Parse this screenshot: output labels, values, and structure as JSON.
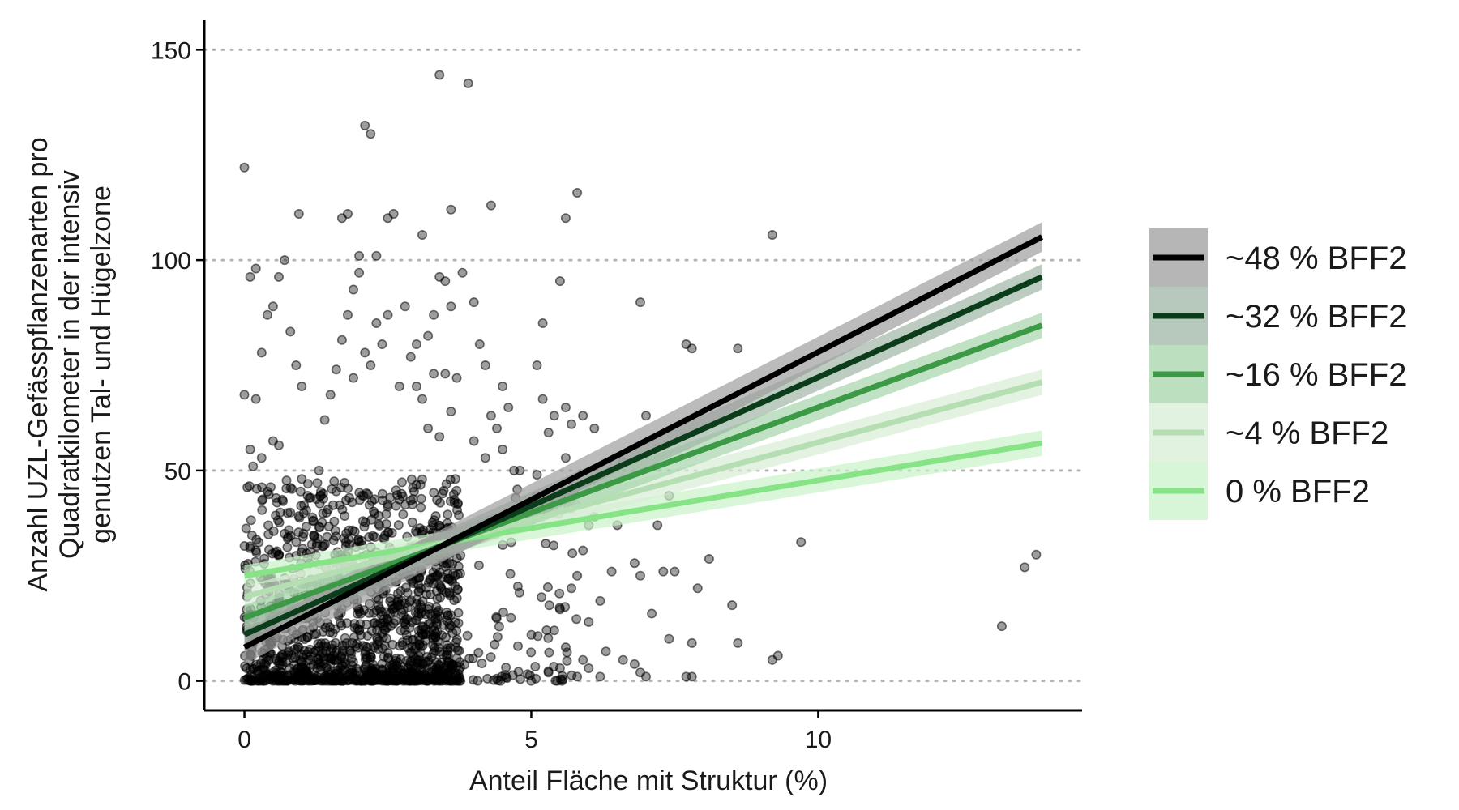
{
  "chart_data": {
    "type": "scatter",
    "xlabel": "Anteil Fläche mit Struktur (%)",
    "ylabel": [
      "Anzahl UZL-Gefässpflanzenarten pro",
      "Quadratkilometer in der intensiv",
      "genutzen Tal- und Hügelzone"
    ],
    "xlim": [
      -0.7,
      14.6
    ],
    "ylim": [
      -7,
      157
    ],
    "x_ticks": [
      0,
      5,
      10
    ],
    "x_tick_labels": [
      "0",
      "5",
      "10"
    ],
    "y_ticks": [
      0,
      50,
      100,
      150
    ],
    "y_tick_labels": [
      "0",
      "50",
      "100",
      "150"
    ],
    "grid": "horizontal dotted",
    "legend_position": "right",
    "point_color": "#000000",
    "series": [
      {
        "name": "~48 % BFF2",
        "color": "#000000",
        "band_color": "#9e9e9e",
        "x": [
          0,
          13.9
        ],
        "y": [
          8,
          105.5
        ],
        "ci": [
          4,
          3.5
        ]
      },
      {
        "name": "~32 % BFF2",
        "color": "#0b3d1a",
        "band_color": "#9fb7a5",
        "x": [
          0,
          13.9
        ],
        "y": [
          11,
          96
        ],
        "ci": [
          3.5,
          3
        ]
      },
      {
        "name": "~16 % BFF2",
        "color": "#3c9a46",
        "band_color": "#a5d4a9",
        "x": [
          0,
          13.9
        ],
        "y": [
          15,
          84.5
        ],
        "ci": [
          3,
          3
        ]
      },
      {
        "name": "~4 % BFF2",
        "color": "#b5deb2",
        "band_color": "#d8edd6",
        "x": [
          0,
          13.9
        ],
        "y": [
          20,
          71
        ],
        "ci": [
          2.5,
          3
        ]
      },
      {
        "name": "0 % BFF2",
        "color": "#86e486",
        "band_color": "#c9f2c9",
        "x": [
          0,
          13.9
        ],
        "y": [
          25,
          56.5
        ],
        "ci": [
          2.5,
          3
        ]
      }
    ],
    "scatter_points": [
      [
        0,
        122
      ],
      [
        0.2,
        98
      ],
      [
        0.1,
        96
      ],
      [
        0.6,
        96
      ],
      [
        0.95,
        111
      ],
      [
        0.7,
        100
      ],
      [
        0.5,
        89
      ],
      [
        0.4,
        87
      ],
      [
        0.8,
        83
      ],
      [
        0.9,
        75
      ],
      [
        1.0,
        70
      ],
      [
        0.3,
        78
      ],
      [
        0,
        68
      ],
      [
        0.2,
        67
      ],
      [
        0.1,
        55
      ],
      [
        0.3,
        53
      ],
      [
        0.05,
        46
      ],
      [
        0.15,
        51
      ],
      [
        0.5,
        57
      ],
      [
        0.6,
        56
      ],
      [
        0.4,
        45
      ],
      [
        0.8,
        40
      ],
      [
        0.7,
        35
      ],
      [
        1.0,
        48
      ],
      [
        0.1,
        32
      ],
      [
        0.2,
        31
      ],
      [
        0.6,
        30
      ],
      [
        0.9,
        33
      ],
      [
        1.2,
        38
      ],
      [
        1.1,
        44
      ],
      [
        1.3,
        50
      ],
      [
        1.4,
        62
      ],
      [
        1.5,
        68
      ],
      [
        1.6,
        74
      ],
      [
        1.7,
        81
      ],
      [
        1.8,
        87
      ],
      [
        1.9,
        93
      ],
      [
        2.0,
        101
      ],
      [
        2.0,
        97
      ],
      [
        2.3,
        101
      ],
      [
        2.1,
        132
      ],
      [
        2.2,
        130
      ],
      [
        1.7,
        110
      ],
      [
        1.8,
        111
      ],
      [
        2.6,
        111
      ],
      [
        2.5,
        110
      ],
      [
        3.1,
        106
      ],
      [
        3.4,
        144
      ],
      [
        3.9,
        142
      ],
      [
        3.6,
        112
      ],
      [
        4.3,
        113
      ],
      [
        3.8,
        97
      ],
      [
        3.5,
        95
      ],
      [
        3.4,
        96
      ],
      [
        4.0,
        90
      ],
      [
        3.6,
        89
      ],
      [
        4.1,
        80
      ],
      [
        3.3,
        87
      ],
      [
        3.2,
        82
      ],
      [
        3.0,
        80
      ],
      [
        2.9,
        77
      ],
      [
        2.8,
        89
      ],
      [
        2.5,
        87
      ],
      [
        2.4,
        80
      ],
      [
        2.3,
        85
      ],
      [
        2.2,
        75
      ],
      [
        2.1,
        78
      ],
      [
        1.9,
        72
      ],
      [
        2.7,
        70
      ],
      [
        3.0,
        70
      ],
      [
        3.1,
        67
      ],
      [
        3.3,
        73
      ],
      [
        3.5,
        73
      ],
      [
        3.7,
        72
      ],
      [
        3.6,
        64
      ],
      [
        3.2,
        60
      ],
      [
        3.4,
        58
      ],
      [
        4.0,
        57
      ],
      [
        4.3,
        63
      ],
      [
        4.4,
        60
      ],
      [
        4.6,
        65
      ],
      [
        4.5,
        55
      ],
      [
        4.2,
        53
      ],
      [
        4.8,
        50
      ],
      [
        5.2,
        67
      ],
      [
        5.4,
        63
      ],
      [
        5.6,
        65
      ],
      [
        5.7,
        61
      ],
      [
        5.9,
        63
      ],
      [
        5.3,
        59
      ],
      [
        5.8,
        116
      ],
      [
        5.6,
        110
      ],
      [
        5.2,
        85
      ],
      [
        5.5,
        95
      ],
      [
        5.1,
        75
      ],
      [
        4.2,
        75
      ],
      [
        4.5,
        70
      ],
      [
        4.7,
        50
      ],
      [
        5.0,
        42
      ],
      [
        5.6,
        53
      ],
      [
        6.1,
        60
      ],
      [
        6.6,
        52
      ],
      [
        6.9,
        90
      ],
      [
        7.0,
        63
      ],
      [
        7.4,
        44
      ],
      [
        7.7,
        80
      ],
      [
        7.8,
        79
      ],
      [
        8.6,
        79
      ],
      [
        7.2,
        37
      ],
      [
        9.2,
        106
      ],
      [
        9.7,
        33
      ],
      [
        8.1,
        29
      ],
      [
        7.9,
        22
      ],
      [
        8.5,
        18
      ],
      [
        8.6,
        9
      ],
      [
        9.2,
        5
      ],
      [
        9.3,
        6
      ],
      [
        7.8,
        9
      ],
      [
        7.4,
        10
      ],
      [
        7.7,
        1
      ],
      [
        7.8,
        1
      ],
      [
        13.2,
        13
      ],
      [
        13.6,
        27
      ],
      [
        13.8,
        30
      ],
      [
        6.1,
        39
      ],
      [
        6.5,
        37
      ],
      [
        6.8,
        28
      ],
      [
        6.4,
        26
      ],
      [
        6.9,
        25
      ],
      [
        7.1,
        16
      ],
      [
        7.3,
        26
      ],
      [
        7.5,
        26
      ],
      [
        6.2,
        19
      ],
      [
        6.0,
        14
      ],
      [
        6.3,
        7
      ],
      [
        6.6,
        5
      ],
      [
        6.8,
        4
      ],
      [
        6.9,
        2
      ],
      [
        7.0,
        1
      ],
      [
        6.2,
        1
      ],
      [
        6.0,
        3
      ],
      [
        5.9,
        5
      ],
      [
        5.8,
        1
      ],
      [
        5.5,
        3
      ],
      [
        5.3,
        2
      ],
      [
        5.6,
        8
      ],
      [
        5.4,
        12
      ],
      [
        5.5,
        17
      ],
      [
        5.7,
        22
      ],
      [
        5.8,
        25
      ],
      [
        5.9,
        31
      ],
      [
        6.0,
        37
      ],
      [
        5.7,
        41
      ],
      [
        5.3,
        44
      ],
      [
        5.1,
        49
      ]
    ],
    "scatter_cluster": {
      "x_range": [
        0,
        5.8
      ],
      "y_range": [
        0,
        48
      ],
      "density": "dense near origin"
    }
  }
}
